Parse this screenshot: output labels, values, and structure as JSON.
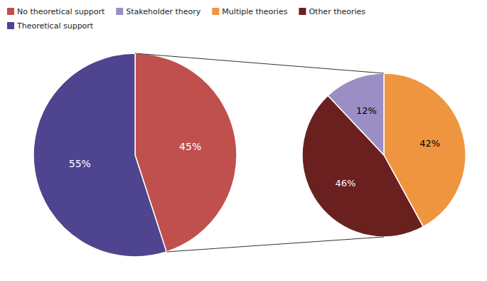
{
  "chart_data": [
    {
      "type": "pie",
      "categories": [
        "No theoretical support",
        "Theoretical support"
      ],
      "values": [
        45,
        55
      ],
      "value_labels": [
        "45%",
        "55%"
      ],
      "colors": [
        "#C0504D",
        "#4F4490"
      ],
      "data_labels": true,
      "legend": "top-left"
    },
    {
      "type": "pie",
      "categories": [
        "Multiple theories",
        "Other theories",
        "Stakeholder theory"
      ],
      "values": [
        42,
        46,
        12
      ],
      "value_labels": [
        "42%",
        "46%",
        "12%"
      ],
      "colors": [
        "#F0953F",
        "#6B2020",
        "#9B8EC4"
      ],
      "data_labels": true,
      "legend": "top-left"
    }
  ]
}
